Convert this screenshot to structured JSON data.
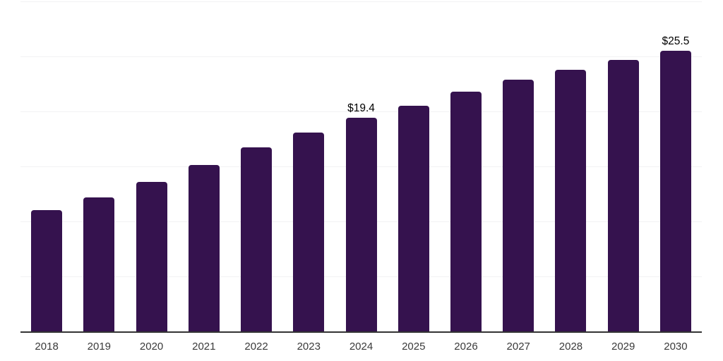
{
  "chart_data": {
    "type": "bar",
    "title": "",
    "xlabel": "",
    "ylabel": "",
    "categories": [
      "2018",
      "2019",
      "2020",
      "2021",
      "2022",
      "2023",
      "2024",
      "2025",
      "2026",
      "2027",
      "2028",
      "2029",
      "2030"
    ],
    "values": [
      11.0,
      12.2,
      13.6,
      15.1,
      16.7,
      18.1,
      19.4,
      20.5,
      21.8,
      22.9,
      23.8,
      24.7,
      25.5
    ],
    "point_labels": [
      "",
      "",
      "",
      "",
      "",
      "",
      "$19.4",
      "",
      "",
      "",
      "",
      "",
      "$25.5"
    ],
    "ylim": [
      0,
      30
    ],
    "gridline_interval": 5,
    "grid": true,
    "legend": false
  },
  "styles": {
    "bar_color": "#35124E",
    "gridline_color": "#F2F2F3",
    "axis_color": "#333333",
    "tick_label_color": "#3A3A3A",
    "data_label_color": "#000000",
    "background_color": "#FFFFFF"
  }
}
